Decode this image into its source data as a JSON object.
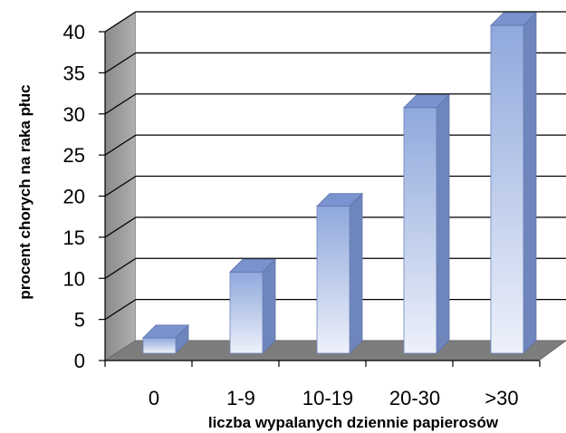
{
  "chart_data": {
    "type": "bar",
    "style": "3d-column",
    "categories": [
      "0",
      "1-9",
      "10-19",
      "20-30",
      ">30"
    ],
    "values": [
      2,
      10,
      18,
      30,
      40
    ],
    "xlabel": "liczba wypalanych dziennie papierosów",
    "ylabel": "procent chorych na raka płuc",
    "ylim": [
      0,
      40
    ],
    "yticks": [
      0,
      5,
      10,
      15,
      20,
      25,
      30,
      35,
      40
    ],
    "grid": true,
    "legend": "none",
    "colors": {
      "bar_top": "#8fa8dc",
      "bar_bottom": "#edf1fa",
      "bar_side": "#6f86bd",
      "bar_cap": "#7a93cf",
      "wall": "#9b9b9b",
      "floor": "#7d7d7d",
      "plot_bg": "#ffffff",
      "gridline": "#000000"
    }
  }
}
